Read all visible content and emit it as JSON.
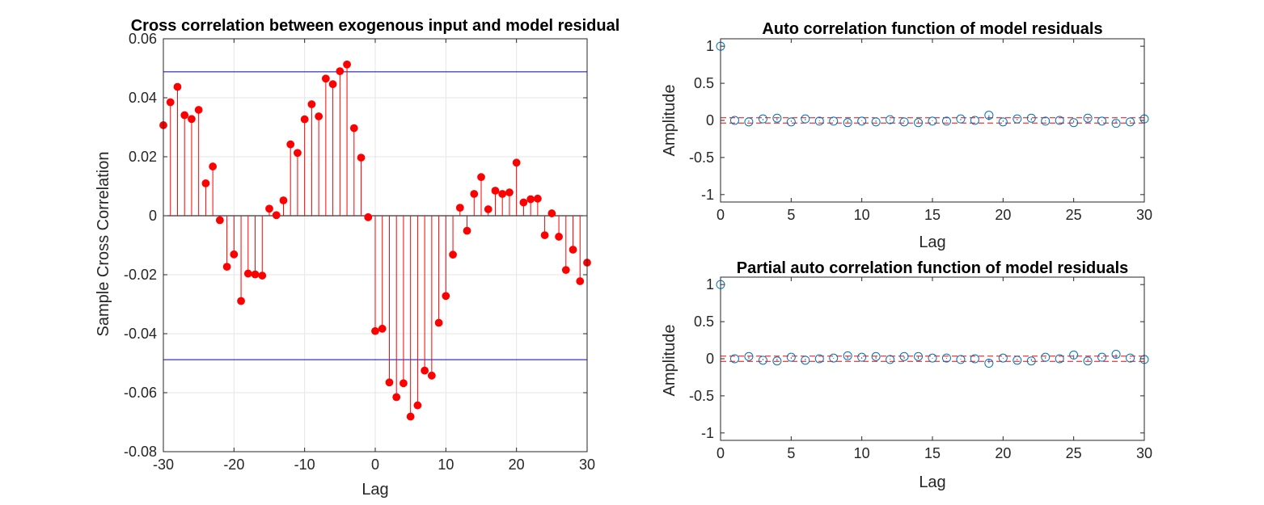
{
  "chart_data": [
    {
      "type": "stem",
      "title": "Cross correlation between exogenous input and model residual",
      "xlabel": "Lag",
      "ylabel": "Sample Cross Correlation",
      "xlim": [
        -30,
        30
      ],
      "ylim": [
        -0.08,
        0.06
      ],
      "xticks": [
        "-30",
        "-20",
        "-10",
        "0",
        "10",
        "20",
        "30"
      ],
      "yticks": [
        "-0.08",
        "-0.06",
        "-0.04",
        "-0.02",
        "0",
        "0.02",
        "0.04",
        "0.06"
      ],
      "grid": true,
      "confidence_bounds": [
        0.0488,
        -0.0488
      ],
      "colors": {
        "stem": "#ff0000",
        "bounds": "#0000bf",
        "zero_line": "#000000"
      },
      "x": [
        -30,
        -29,
        -28,
        -27,
        -26,
        -25,
        -24,
        -23,
        -22,
        -21,
        -20,
        -19,
        -18,
        -17,
        -16,
        -15,
        -14,
        -13,
        -12,
        -11,
        -10,
        -9,
        -8,
        -7,
        -6,
        -5,
        -4,
        -3,
        -2,
        -1,
        0,
        1,
        2,
        3,
        4,
        5,
        6,
        7,
        8,
        9,
        10,
        11,
        12,
        13,
        14,
        15,
        16,
        17,
        18,
        19,
        20,
        21,
        22,
        23,
        24,
        25,
        26,
        27,
        28,
        29,
        30
      ],
      "y": [
        0.0307,
        0.0385,
        0.0437,
        0.0341,
        0.0328,
        0.0359,
        0.011,
        0.0167,
        -0.0015,
        -0.0173,
        -0.0131,
        -0.0289,
        -0.0196,
        -0.0199,
        -0.0203,
        0.0024,
        0.0002,
        0.0052,
        0.0242,
        0.0213,
        0.0327,
        0.0378,
        0.0337,
        0.0465,
        0.0446,
        0.049,
        0.0513,
        0.0297,
        0.0197,
        -0.0005,
        -0.0391,
        -0.0383,
        -0.0565,
        -0.0615,
        -0.0568,
        -0.0681,
        -0.0643,
        -0.0525,
        -0.0542,
        -0.0363,
        -0.0272,
        -0.0132,
        0.0027,
        -0.0051,
        0.0074,
        0.0131,
        0.0022,
        0.0085,
        0.0074,
        0.0079,
        0.018,
        0.0045,
        0.0056,
        0.0058,
        -0.0066,
        0.0008,
        -0.0071,
        -0.0184,
        -0.0115,
        -0.0222,
        -0.0159
      ]
    },
    {
      "type": "stem",
      "title": "Auto correlation function of model residuals",
      "xlabel": "Lag",
      "ylabel": "Amplitude",
      "xlim": [
        0,
        30
      ],
      "ylim": [
        -1.1,
        1.1
      ],
      "xticks": [
        "0",
        "5",
        "10",
        "15",
        "20",
        "25",
        "30"
      ],
      "yticks": [
        "-1",
        "-0.5",
        "0",
        "0.5",
        "1"
      ],
      "grid": false,
      "confidence_bounds": [
        0.035,
        -0.035
      ],
      "colors": {
        "stem": "#0072bd",
        "bounds": "#ff0000"
      },
      "x": [
        0,
        1,
        2,
        3,
        4,
        5,
        6,
        7,
        8,
        9,
        10,
        11,
        12,
        13,
        14,
        15,
        16,
        17,
        18,
        19,
        20,
        21,
        22,
        23,
        24,
        25,
        26,
        27,
        28,
        29,
        30
      ],
      "y": [
        1.0,
        0.0,
        -0.02,
        0.02,
        0.03,
        -0.02,
        0.02,
        -0.01,
        -0.01,
        -0.03,
        -0.01,
        -0.02,
        0.01,
        -0.02,
        -0.03,
        -0.01,
        -0.01,
        0.02,
        0.0,
        0.07,
        -0.02,
        0.02,
        0.03,
        -0.01,
        0.0,
        -0.03,
        0.03,
        -0.01,
        -0.04,
        -0.02,
        0.02
      ]
    },
    {
      "type": "stem",
      "title": "Partial auto correlation function of model residuals",
      "xlabel": "Lag",
      "ylabel": "Amplitude",
      "xlim": [
        0,
        30
      ],
      "ylim": [
        -1.1,
        1.1
      ],
      "xticks": [
        "0",
        "5",
        "10",
        "15",
        "20",
        "25",
        "30"
      ],
      "yticks": [
        "-1",
        "-0.5",
        "0",
        "0.5",
        "1"
      ],
      "grid": false,
      "confidence_bounds": [
        0.035,
        -0.035
      ],
      "colors": {
        "stem": "#0072bd",
        "bounds": "#ff0000"
      },
      "x": [
        0,
        1,
        2,
        3,
        4,
        5,
        6,
        7,
        8,
        9,
        10,
        11,
        12,
        13,
        14,
        15,
        16,
        17,
        18,
        19,
        20,
        21,
        22,
        23,
        24,
        25,
        26,
        27,
        28,
        29,
        30
      ],
      "y": [
        1.0,
        0.0,
        0.03,
        -0.02,
        -0.03,
        0.02,
        -0.02,
        0.0,
        0.01,
        0.04,
        0.02,
        0.03,
        -0.01,
        0.03,
        0.03,
        0.01,
        0.01,
        -0.01,
        0.0,
        -0.06,
        0.01,
        -0.02,
        -0.03,
        0.02,
        0.0,
        0.05,
        -0.03,
        0.02,
        0.06,
        0.01,
        -0.01
      ]
    }
  ]
}
